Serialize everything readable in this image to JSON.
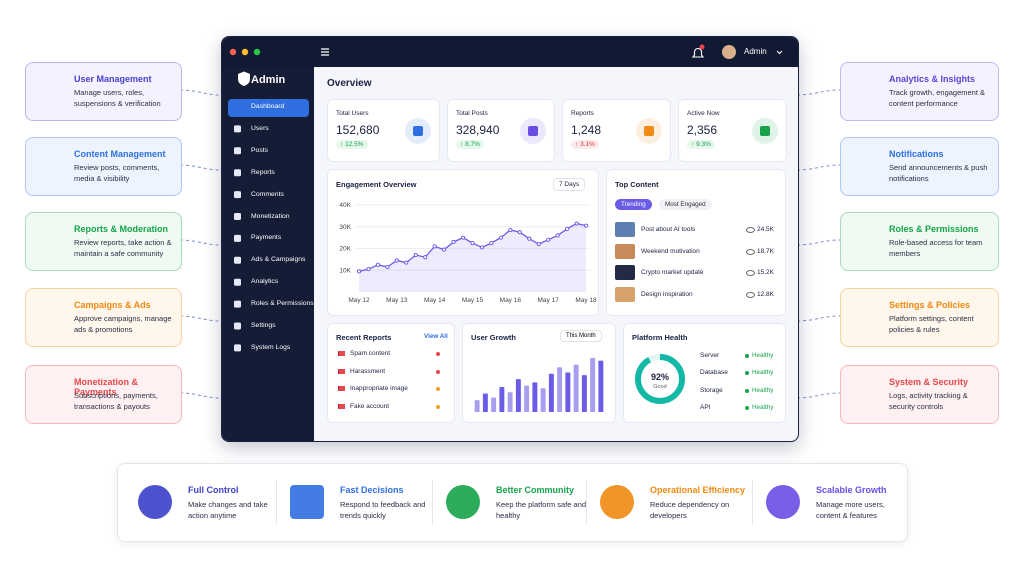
{
  "features_left": [
    {
      "title": "User Management",
      "desc": "Manage users, roles, suspensions & verification"
    },
    {
      "title": "Content Management",
      "desc": "Review posts, comments, media & visibility"
    },
    {
      "title": "Reports & Moderation",
      "desc": "Review reports, take action & maintain a safe community"
    },
    {
      "title": "Campaigns & Ads",
      "desc": "Approve campaigns, manage ads & promotions"
    },
    {
      "title": "Monetization & Payments",
      "desc": "Subscriptions, payments, transactions & payouts"
    }
  ],
  "features_right": [
    {
      "title": "Analytics & Insights",
      "desc": "Track growth, engagement & content performance"
    },
    {
      "title": "Notifications",
      "desc": "Send announcements & push notifications"
    },
    {
      "title": "Roles & Permissions",
      "desc": "Role-based access for team members"
    },
    {
      "title": "Settings & Policies",
      "desc": "Platform settings, content policies & rules"
    },
    {
      "title": "System & Security",
      "desc": "Logs, activity tracking & security controls"
    }
  ],
  "dashboard": {
    "brand": "Admin",
    "user": "Admin",
    "nav": [
      "Dashboard",
      "Users",
      "Posts",
      "Reports",
      "Comments",
      "Monetization",
      "Payments",
      "Ads & Campaigns",
      "Analytics",
      "Roles & Permissions",
      "Settings",
      "System Logs"
    ],
    "heading": "Overview",
    "stats": [
      {
        "label": "Total Users",
        "value": "152,680",
        "change": "12.5%"
      },
      {
        "label": "Total Posts",
        "value": "328,940",
        "change": "8.7%"
      },
      {
        "label": "Reports",
        "value": "1,248",
        "change": "3.1%"
      },
      {
        "label": "Active Now",
        "value": "2,356",
        "change": "9.3%"
      }
    ],
    "engagement": {
      "title": "Engagement Overview",
      "range": "7 Days",
      "ylim": [
        0,
        40000
      ],
      "yticks": [
        {
          "value": 10000,
          "label": "10K"
        },
        {
          "value": 20000,
          "label": "20K"
        },
        {
          "value": 30000,
          "label": "30K"
        },
        {
          "value": 40000,
          "label": "40K"
        }
      ],
      "x_labels": [
        "May 12",
        "May 13",
        "May 14",
        "May 15",
        "May 16",
        "May 17",
        "May 18"
      ],
      "values": [
        9500,
        10500,
        12500,
        11500,
        14500,
        13500,
        17000,
        16000,
        21000,
        19500,
        23000,
        25000,
        22500,
        20500,
        22500,
        25000,
        28500,
        27500,
        24500,
        22000,
        24000,
        26000,
        29000,
        31500,
        30500
      ]
    },
    "top_content": {
      "title": "Top Content",
      "tabs": [
        "Trending",
        "Most Engaged"
      ],
      "items": [
        {
          "name": "Post about AI tools",
          "value": "24.5K"
        },
        {
          "name": "Weekend motivation",
          "value": "18.7K"
        },
        {
          "name": "Crypto market update",
          "value": "15.2K"
        },
        {
          "name": "Design inspiration",
          "value": "12.8K"
        }
      ]
    },
    "recent_reports": {
      "title": "Recent Reports",
      "link": "View All",
      "items": [
        "Spam content",
        "Harassment",
        "Inappropriate image",
        "Fake account"
      ]
    },
    "user_growth": {
      "title": "User Growth",
      "range": "This Month",
      "values": [
        18,
        28,
        22,
        38,
        30,
        50,
        40,
        45,
        36,
        58,
        68,
        60,
        72,
        56,
        82,
        78
      ]
    },
    "platform_health": {
      "title": "Platform Health",
      "percent": 92,
      "percent_label": "92%",
      "status_label": "Good",
      "items": [
        {
          "name": "Server",
          "status": "Healthy"
        },
        {
          "name": "Database",
          "status": "Healthy"
        },
        {
          "name": "Storage",
          "status": "Healthy"
        },
        {
          "name": "API",
          "status": "Healthy"
        }
      ]
    }
  },
  "benefits": [
    {
      "title": "Full Control",
      "desc": "Make changes and take action anytime"
    },
    {
      "title": "Fast Decisions",
      "desc": "Respond to feedback and trends quickly"
    },
    {
      "title": "Better Community",
      "desc": "Keep the platform safe and healthy"
    },
    {
      "title": "Operational Efficiency",
      "desc": "Reduce dependency on developers"
    },
    {
      "title": "Scalable Growth",
      "desc": "Manage more users, content & features"
    }
  ]
}
